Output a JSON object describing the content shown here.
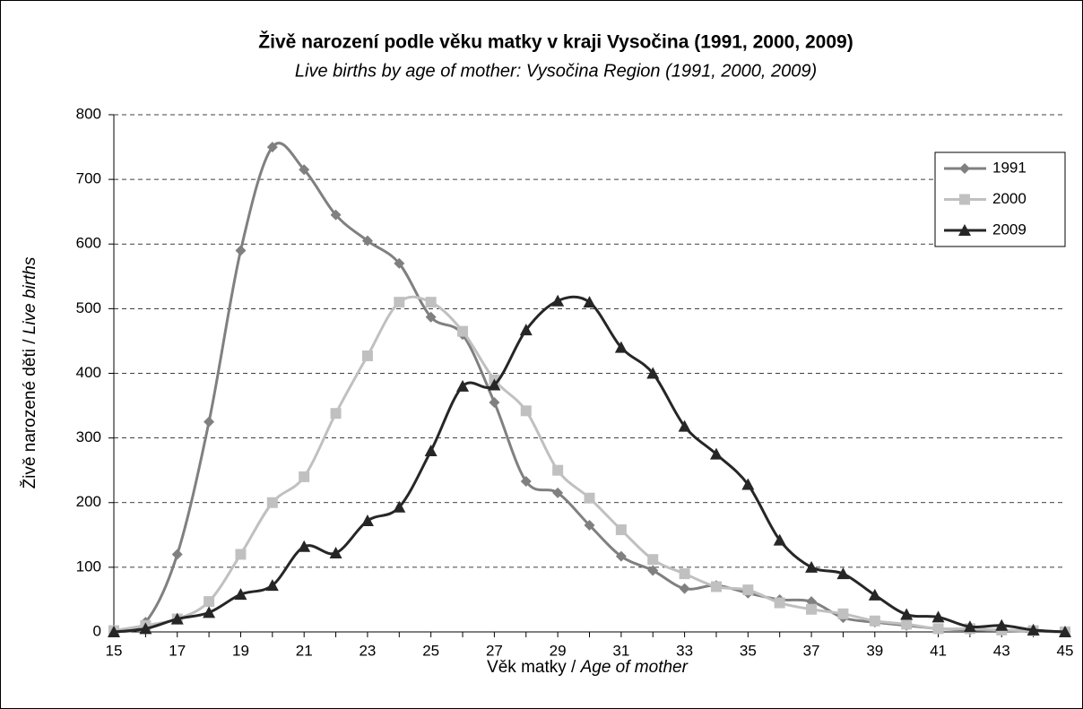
{
  "chart_data": {
    "type": "line",
    "title": "Živě narození podle věku matky v kraji Vysočina (1991, 2000, 2009)",
    "subtitle": "Live births by age of mother: Vysočina Region (1991, 2000, 2009)",
    "x_label": {
      "cs": "Věk matky /",
      "en": "Age of mother"
    },
    "y_label": {
      "cs": "Živě narozené děti /",
      "en": "Live births"
    },
    "x": [
      15,
      16,
      17,
      18,
      19,
      20,
      21,
      22,
      23,
      24,
      25,
      26,
      27,
      28,
      29,
      30,
      31,
      32,
      33,
      34,
      35,
      36,
      37,
      38,
      39,
      40,
      41,
      42,
      43,
      44,
      45
    ],
    "xlim": [
      15,
      45
    ],
    "xticks": [
      15,
      17,
      19,
      21,
      23,
      25,
      27,
      29,
      31,
      33,
      35,
      37,
      39,
      41,
      43,
      45
    ],
    "ylim": [
      0,
      800
    ],
    "yticks": [
      0,
      100,
      200,
      300,
      400,
      500,
      600,
      700,
      800
    ],
    "grid": true,
    "legend": "upper right",
    "series": [
      {
        "name": "1991",
        "color": "#808080",
        "marker": "diamond",
        "values": [
          0,
          15,
          120,
          325,
          590,
          750,
          715,
          645,
          605,
          570,
          487,
          460,
          355,
          233,
          215,
          165,
          117,
          95,
          67,
          72,
          60,
          50,
          47,
          22,
          15,
          10,
          5,
          3,
          2,
          1,
          0
        ]
      },
      {
        "name": "2000",
        "color": "#c0c0c0",
        "marker": "square",
        "values": [
          2,
          10,
          20,
          47,
          120,
          200,
          240,
          338,
          427,
          510,
          510,
          465,
          390,
          342,
          250,
          207,
          158,
          112,
          90,
          70,
          65,
          45,
          35,
          28,
          17,
          12,
          5,
          5,
          3,
          2,
          0
        ]
      },
      {
        "name": "2009",
        "color": "#262626",
        "marker": "triangle",
        "values": [
          0,
          5,
          20,
          30,
          58,
          72,
          132,
          122,
          172,
          193,
          280,
          380,
          382,
          467,
          512,
          510,
          440,
          400,
          318,
          275,
          228,
          142,
          100,
          90,
          57,
          27,
          23,
          8,
          10,
          3,
          0
        ]
      }
    ]
  }
}
